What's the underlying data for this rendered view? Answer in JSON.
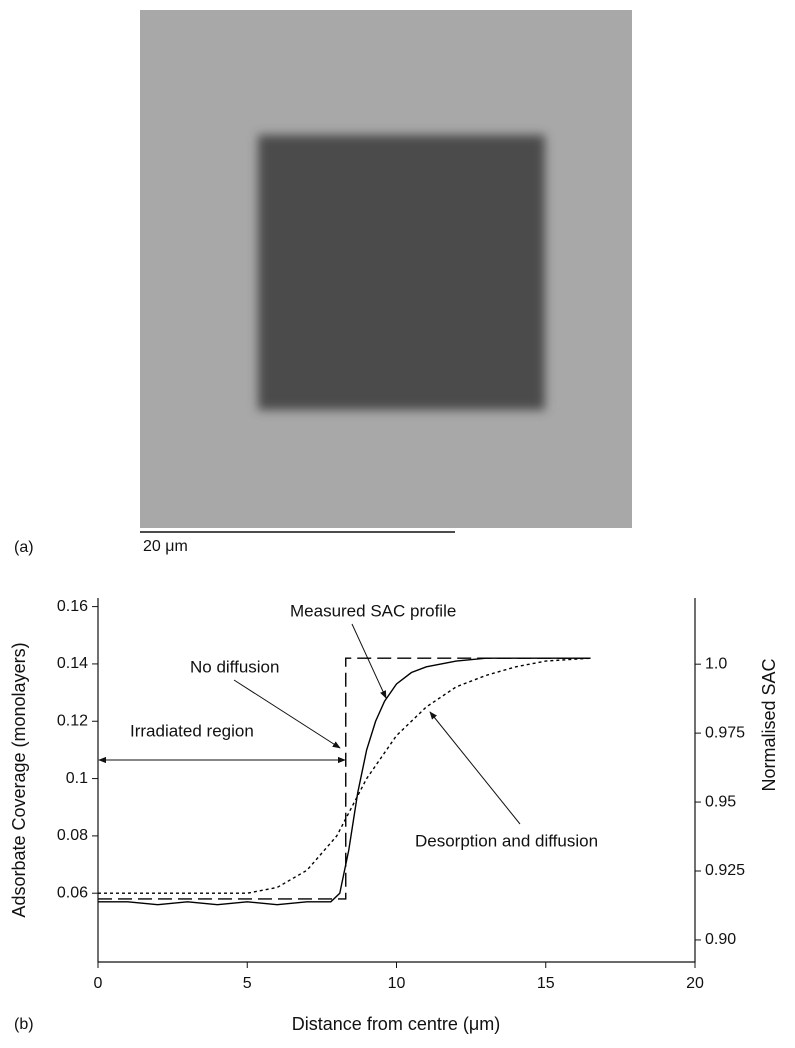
{
  "panel_a": {
    "label": "(a)",
    "scale_bar": "20 μm"
  },
  "chart_data": {
    "type": "line",
    "panel_label": "(b)",
    "x_label": "Distance from centre (μm)",
    "y_label": "Adsorbate Coverage (monolayers)",
    "y2_label": "Normalised SAC",
    "annotations": [
      "Measured SAC profile",
      "No diffusion",
      "Irradiated region",
      "Desorption and diffusion"
    ],
    "xlim": [
      0,
      20
    ],
    "xticks": [
      0,
      5,
      10,
      15,
      20
    ],
    "ylim": [
      0.036,
      0.163
    ],
    "yticks": [
      0.06,
      0.08,
      0.1,
      0.12,
      0.14,
      0.16
    ],
    "y2lim": [
      0.892,
      1.024
    ],
    "y2ticks": [
      {
        "value": 0.9,
        "label": "0.90"
      },
      0.925,
      0.95,
      0.975,
      {
        "value": 1,
        "label": "1.0"
      }
    ],
    "series": [
      {
        "color": "#000000",
        "style": "solid",
        "x": [
          0,
          1,
          2,
          3,
          4,
          5,
          6,
          7,
          7.8,
          8.1,
          8.4,
          8.7,
          9,
          9.3,
          9.6,
          10,
          10.5,
          11,
          12,
          13,
          14,
          15,
          16.5
        ],
        "values": [
          0.057,
          0.057,
          0.056,
          0.057,
          0.056,
          0.057,
          0.056,
          0.057,
          0.057,
          0.06,
          0.075,
          0.095,
          0.11,
          0.12,
          0.127,
          0.133,
          0.137,
          0.139,
          0.141,
          0.142,
          0.142,
          0.142,
          0.142
        ]
      },
      {
        "color": "#000000",
        "style": "dashed",
        "x": [
          0,
          8.3,
          8.3,
          16.5
        ],
        "values": [
          0.058,
          0.058,
          0.142,
          0.142
        ]
      },
      {
        "color": "#000000",
        "style": "dotted",
        "x": [
          0,
          5,
          6,
          7,
          8,
          9,
          10,
          11,
          12,
          13,
          14,
          15,
          16.5
        ],
        "values": [
          0.06,
          0.06,
          0.062,
          0.068,
          0.08,
          0.1,
          0.115,
          0.125,
          0.132,
          0.136,
          0.139,
          0.141,
          0.142
        ]
      }
    ]
  }
}
